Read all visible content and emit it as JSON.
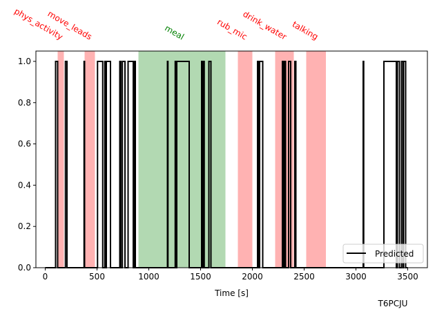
{
  "chart_data": {
    "type": "line",
    "xlabel": "Time [s]",
    "ylabel": "",
    "xlim": [
      -90,
      3690
    ],
    "ylim": [
      0,
      1.05
    ],
    "xticks": [
      0,
      500,
      1000,
      1500,
      2000,
      2500,
      3000,
      3500
    ],
    "yticks": [
      0.0,
      0.2,
      0.4,
      0.6,
      0.8,
      1.0
    ],
    "xtick_labels": [
      "0",
      "500",
      "1000",
      "1500",
      "2000",
      "2500",
      "3000",
      "3500"
    ],
    "ytick_labels": [
      "0.0",
      "0.2",
      "0.4",
      "0.6",
      "0.8",
      "1.0"
    ],
    "grid": false,
    "legend": {
      "position": "lower-right",
      "entries": [
        {
          "label": "Predicted",
          "color": "#000000"
        }
      ]
    },
    "corner_label": "T6PCJU",
    "events": [
      {
        "label": "phys_activity",
        "start": 120,
        "end": 180,
        "color": "#ff0000"
      },
      {
        "label": "move_leads",
        "start": 380,
        "end": 480,
        "color": "#ff0000"
      },
      {
        "label": "meal",
        "start": 900,
        "end": 1740,
        "color": "#008000"
      },
      {
        "label": "rub_mic",
        "start": 1860,
        "end": 2000,
        "color": "#ff0000"
      },
      {
        "label": "drink_water",
        "start": 2220,
        "end": 2400,
        "color": "#ff0000"
      },
      {
        "label": "talking",
        "start": 2520,
        "end": 2710,
        "color": "#ff0000"
      }
    ],
    "series": [
      {
        "name": "Predicted",
        "color": "#000000",
        "pulses": [
          [
            100,
            120
          ],
          [
            195,
            210
          ],
          [
            375,
            380
          ],
          [
            505,
            555
          ],
          [
            575,
            580
          ],
          [
            590,
            630
          ],
          [
            720,
            730
          ],
          [
            745,
            770
          ],
          [
            800,
            850
          ],
          [
            860,
            870
          ],
          [
            1180,
            1185
          ],
          [
            1255,
            1260
          ],
          [
            1270,
            1390
          ],
          [
            1510,
            1520
          ],
          [
            1525,
            1535
          ],
          [
            1580,
            1600
          ],
          [
            2050,
            2060
          ],
          [
            2070,
            2100
          ],
          [
            2290,
            2300
          ],
          [
            2310,
            2320
          ],
          [
            2350,
            2370
          ],
          [
            2410,
            2420
          ],
          [
            3070,
            3075
          ],
          [
            3270,
            3390
          ],
          [
            3400,
            3420
          ],
          [
            3440,
            3455
          ],
          [
            3460,
            3480
          ]
        ],
        "time_range": [
          0,
          3500
        ]
      }
    ]
  }
}
